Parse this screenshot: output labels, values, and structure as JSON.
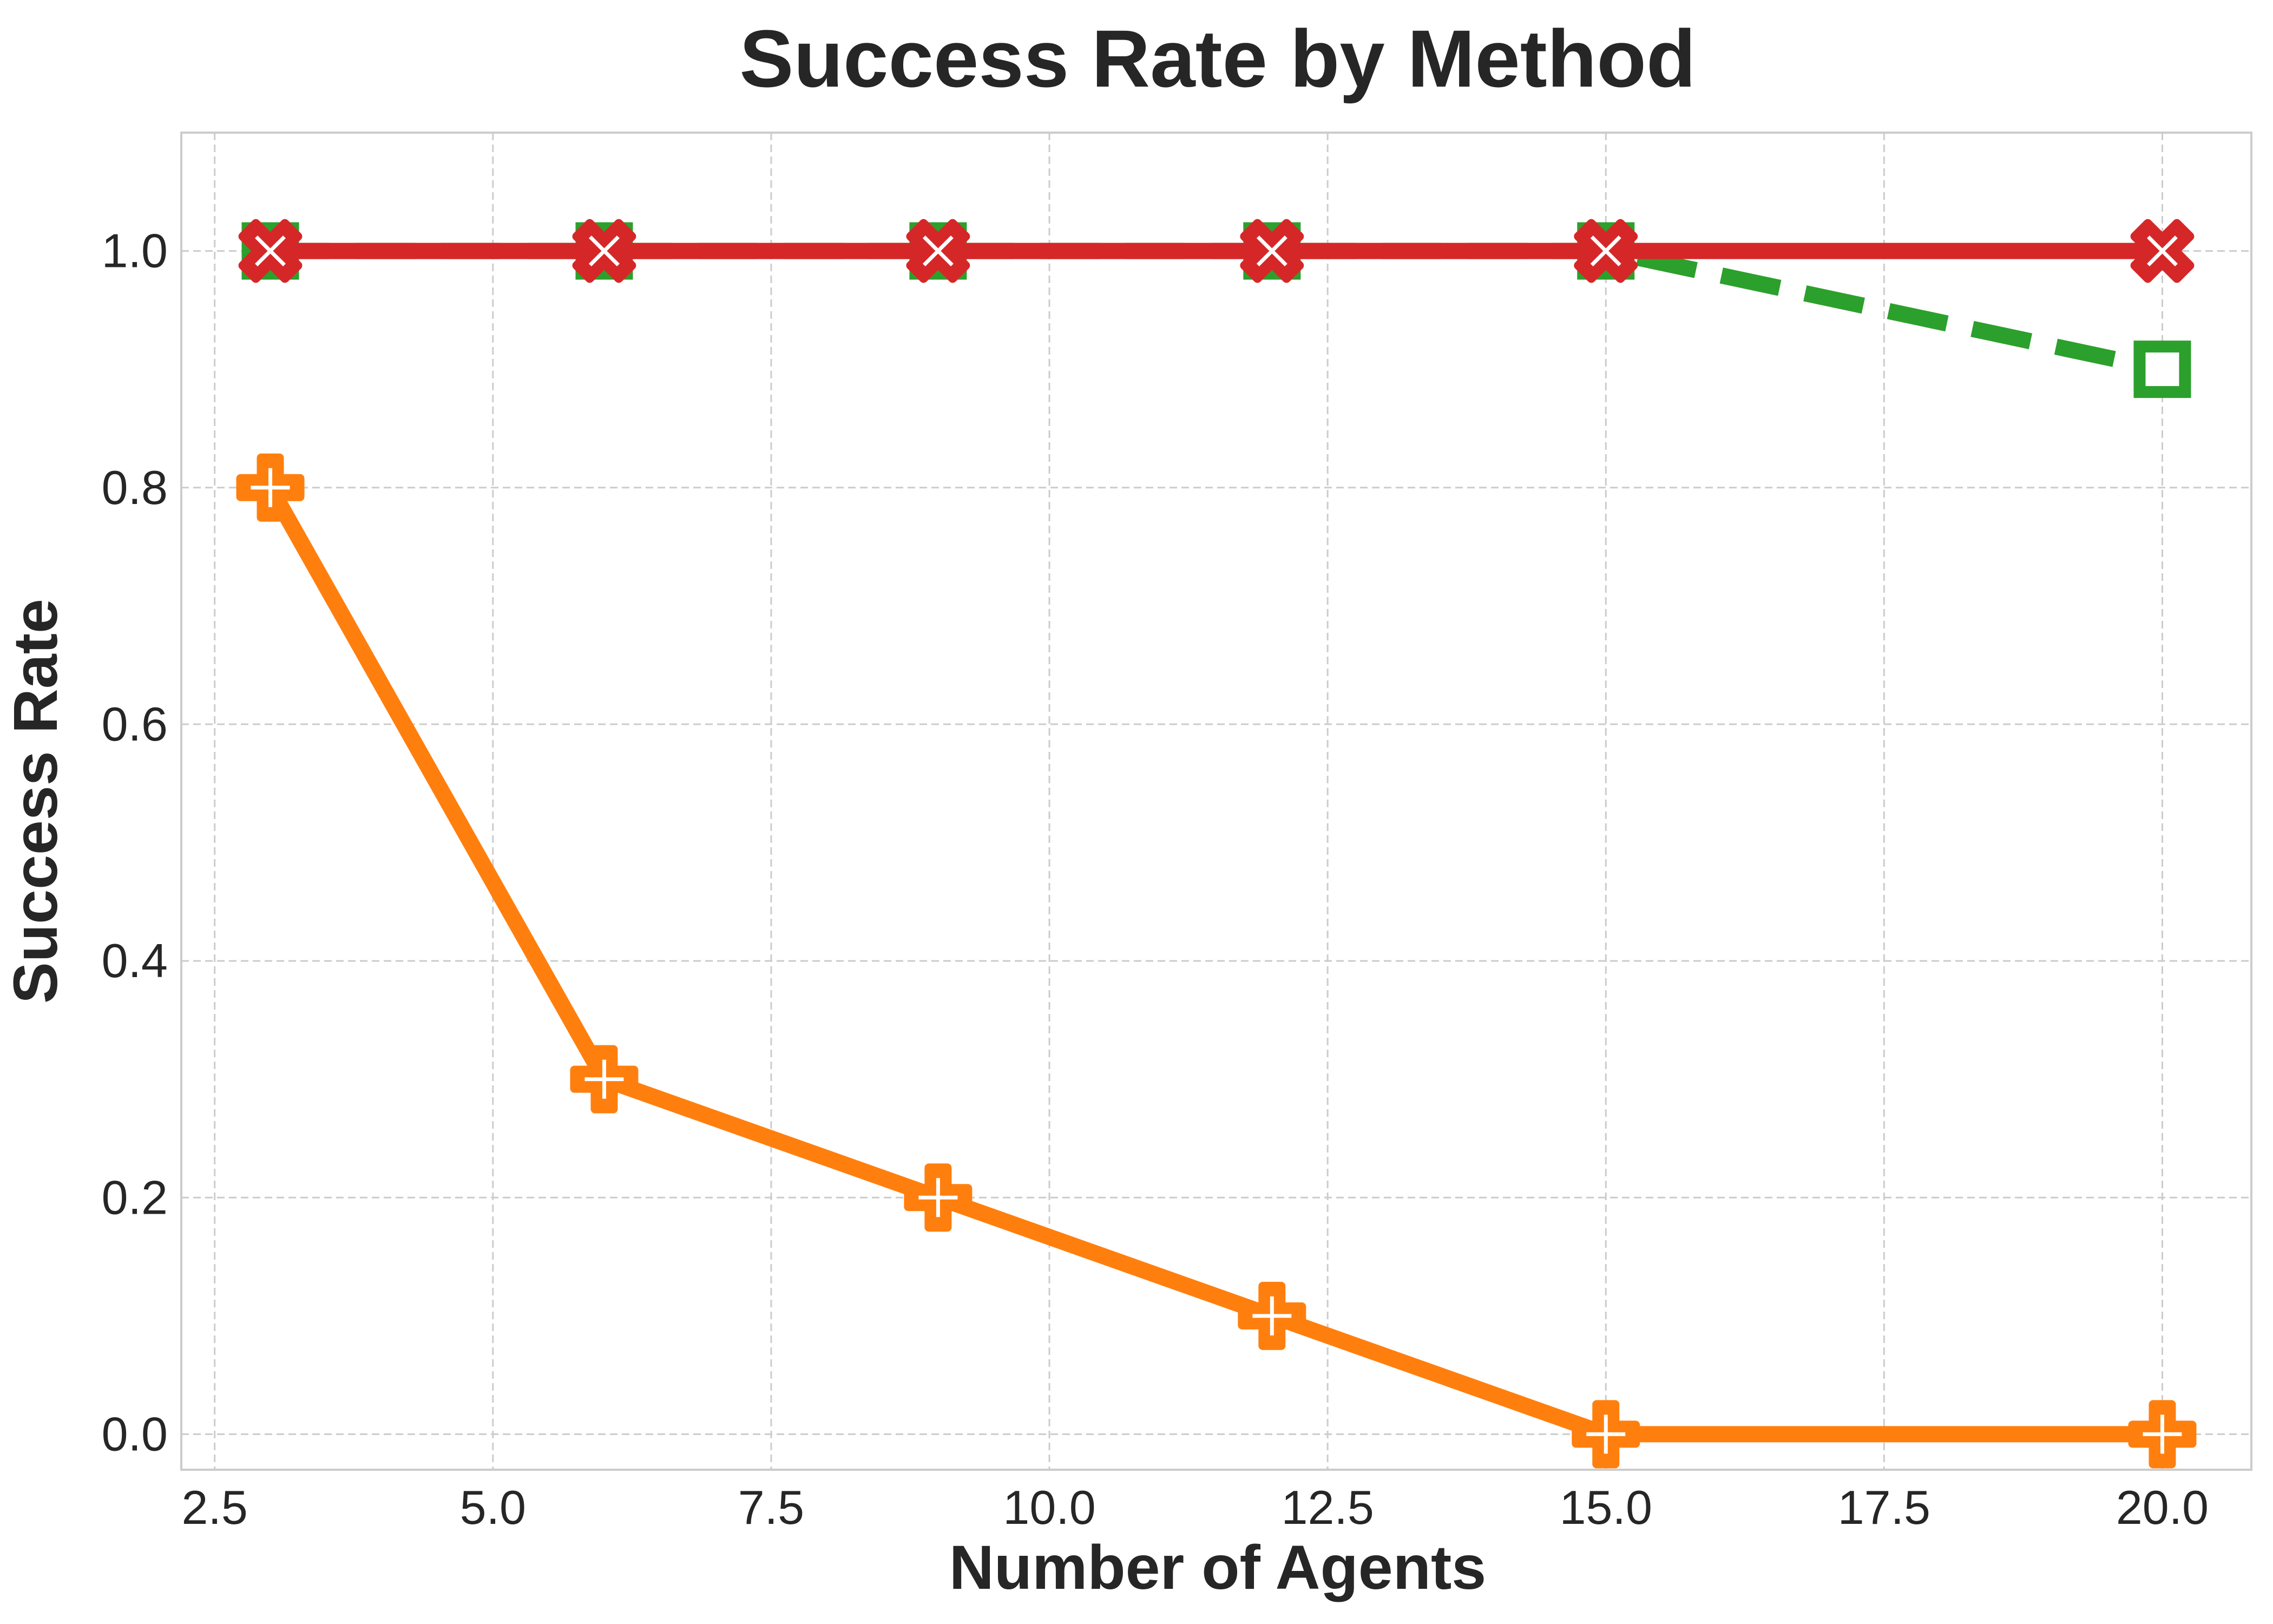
{
  "chart_data": {
    "type": "line",
    "title": "Success Rate by Method",
    "xlabel": "Number of Agents",
    "ylabel": "Success Rate",
    "xlim": [
      2.2,
      20.8
    ],
    "ylim": [
      -0.03,
      1.1
    ],
    "xticks": [
      2.5,
      5.0,
      7.5,
      10.0,
      12.5,
      15.0,
      17.5,
      20.0
    ],
    "yticks": [
      0.0,
      0.2,
      0.4,
      0.6,
      0.8,
      1.0
    ],
    "xtick_labels": [
      "2.5",
      "5.0",
      "7.5",
      "10.0",
      "12.5",
      "15.0",
      "17.5",
      "20.0"
    ],
    "ytick_labels": [
      "0.0",
      "0.2",
      "0.4",
      "0.6",
      "0.8",
      "1.0"
    ],
    "grid": true,
    "series": [
      {
        "color": "#2ca02c",
        "line_style": "dashed",
        "marker": "square",
        "x": [
          3,
          6,
          9,
          12,
          15,
          20
        ],
        "y": [
          1.0,
          1.0,
          1.0,
          1.0,
          1.0,
          0.9
        ]
      },
      {
        "color": "#ff7f0e",
        "line_style": "solid",
        "marker": "plus",
        "x": [
          3,
          6,
          9,
          12,
          15,
          20
        ],
        "y": [
          0.8,
          0.3,
          0.2,
          0.1,
          0.0,
          0.0
        ]
      },
      {
        "color": "#d62728",
        "line_style": "solid",
        "marker": "x",
        "x": [
          3,
          6,
          9,
          12,
          15,
          20
        ],
        "y": [
          1.0,
          1.0,
          1.0,
          1.0,
          1.0,
          1.0
        ]
      }
    ]
  }
}
